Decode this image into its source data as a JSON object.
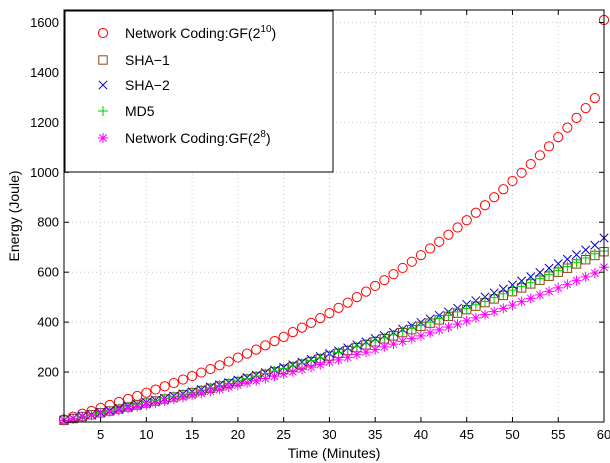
{
  "chart_data": {
    "type": "scatter",
    "xlabel": "Time (Minutes)",
    "ylabel": "Energy (Joule)",
    "xlim": [
      1,
      60
    ],
    "ylim": [
      0,
      1650
    ],
    "xticks": [
      5,
      10,
      15,
      20,
      25,
      30,
      35,
      40,
      45,
      50,
      55,
      60
    ],
    "yticks": [
      200,
      400,
      600,
      800,
      1000,
      1200,
      1400,
      1600
    ],
    "grid": true,
    "legend_position": "top-left",
    "x": [
      1,
      2,
      3,
      4,
      5,
      6,
      7,
      8,
      9,
      10,
      11,
      12,
      13,
      14,
      15,
      16,
      17,
      18,
      19,
      20,
      21,
      22,
      23,
      24,
      25,
      26,
      27,
      28,
      29,
      30,
      31,
      32,
      33,
      34,
      35,
      36,
      37,
      38,
      39,
      40,
      41,
      42,
      43,
      44,
      45,
      46,
      47,
      48,
      49,
      50,
      51,
      52,
      53,
      54,
      55,
      56,
      57,
      58,
      59,
      60
    ],
    "series": [
      {
        "name_parts": [
          "Network Coding:GF(2",
          "10",
          ")"
        ],
        "marker": "circle",
        "color": "#ff0000",
        "values": [
          10,
          21,
          33,
          44,
          56,
          68,
          80,
          92,
          104,
          117,
          130,
          143,
          156,
          170,
          184,
          198,
          212,
          227,
          242,
          258,
          274,
          290,
          307,
          324,
          341,
          360,
          378,
          397,
          416,
          436,
          457,
          478,
          500,
          522,
          545,
          568,
          592,
          617,
          642,
          668,
          695,
          722,
          750,
          779,
          808,
          838,
          868,
          900,
          932,
          965,
          998,
          1033,
          1068,
          1104,
          1141,
          1179,
          1218,
          1257,
          1297,
          1610
        ]
      },
      {
        "name_parts": [
          "SHA−1",
          "",
          ""
        ],
        "marker": "square",
        "color": "#8b4513",
        "values": [
          7,
          14,
          22,
          29,
          37,
          44,
          52,
          60,
          68,
          76,
          84,
          92,
          100,
          109,
          117,
          126,
          135,
          144,
          153,
          162,
          172,
          181,
          191,
          201,
          211,
          221,
          232,
          242,
          253,
          264,
          275,
          286,
          298,
          309,
          321,
          333,
          345,
          358,
          370,
          383,
          396,
          409,
          423,
          436,
          450,
          464,
          478,
          493,
          507,
          522,
          537,
          553,
          568,
          584,
          600,
          616,
          633,
          650,
          667,
          682
        ]
      },
      {
        "name_parts": [
          "SHA−2",
          "",
          ""
        ],
        "marker": "cross",
        "color": "#0000cc",
        "values": [
          7,
          15,
          23,
          30,
          38,
          46,
          54,
          62,
          70,
          78,
          87,
          95,
          104,
          113,
          121,
          130,
          140,
          149,
          158,
          168,
          178,
          188,
          198,
          208,
          219,
          229,
          240,
          251,
          262,
          274,
          285,
          297,
          309,
          321,
          334,
          346,
          359,
          372,
          386,
          399,
          413,
          427,
          441,
          456,
          471,
          486,
          501,
          517,
          533,
          549,
          565,
          582,
          599,
          616,
          634,
          652,
          670,
          689,
          708,
          737
        ]
      },
      {
        "name_parts": [
          "MD5",
          "",
          ""
        ],
        "marker": "plus",
        "color": "#00cc00",
        "values": [
          7,
          14,
          22,
          29,
          37,
          45,
          53,
          61,
          69,
          77,
          85,
          94,
          102,
          111,
          119,
          128,
          137,
          146,
          155,
          165,
          174,
          184,
          194,
          204,
          214,
          224,
          235,
          246,
          256,
          267,
          279,
          290,
          301,
          313,
          325,
          337,
          349,
          362,
          375,
          387,
          400,
          414,
          427,
          441,
          455,
          469,
          483,
          498,
          513,
          528,
          543,
          558,
          574,
          590,
          606,
          623,
          640,
          657,
          674,
          685
        ]
      },
      {
        "name_parts": [
          "Network Coding:GF(2",
          "8",
          ")"
        ],
        "marker": "asterisk",
        "color": "#ff00ff",
        "values": [
          6,
          13,
          20,
          27,
          34,
          41,
          48,
          55,
          62,
          69,
          77,
          84,
          92,
          99,
          107,
          115,
          123,
          131,
          140,
          148,
          157,
          165,
          174,
          183,
          192,
          201,
          211,
          220,
          230,
          240,
          249,
          259,
          270,
          280,
          290,
          301,
          312,
          323,
          334,
          345,
          357,
          369,
          380,
          392,
          405,
          417,
          430,
          442,
          455,
          468,
          482,
          495,
          509,
          523,
          537,
          551,
          566,
          581,
          596,
          620
        ]
      }
    ]
  }
}
